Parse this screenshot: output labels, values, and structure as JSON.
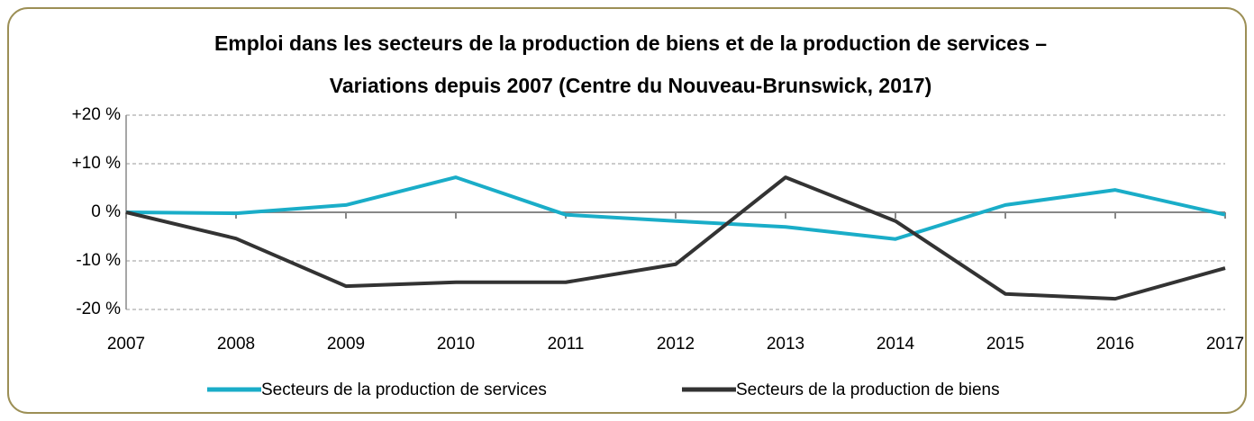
{
  "chart_data": {
    "type": "line",
    "title": [
      "Emploi dans les secteurs de la production de biens et de la production de services –",
      "Variations depuis 2007 (Centre du Nouveau-Brunswick, 2017)"
    ],
    "categories": [
      "2007",
      "2008",
      "2009",
      "2010",
      "2011",
      "2012",
      "2013",
      "2014",
      "2015",
      "2016",
      "2017"
    ],
    "series": [
      {
        "name": "Secteurs de la production de services",
        "color": "#1aadc8",
        "values": [
          0,
          -0.2,
          1.5,
          7.2,
          -0.5,
          -1.8,
          -3.0,
          -5.5,
          1.5,
          4.6,
          -0.5
        ]
      },
      {
        "name": "Secteurs de la production de biens",
        "color": "#333333",
        "values": [
          0,
          -5.4,
          -15.2,
          -14.4,
          -14.4,
          -10.7,
          7.2,
          -1.8,
          -16.8,
          -17.8,
          -11.5
        ]
      }
    ],
    "ylim": [
      -20,
      20
    ],
    "yticks": [
      {
        "value": 20,
        "label": "+20 %"
      },
      {
        "value": 10,
        "label": "+10 %"
      },
      {
        "value": 0,
        "label": "0 %"
      },
      {
        "value": -10,
        "label": "-10 %"
      },
      {
        "value": -20,
        "label": "-20 %"
      }
    ],
    "grid": true,
    "legend": "bottom"
  }
}
